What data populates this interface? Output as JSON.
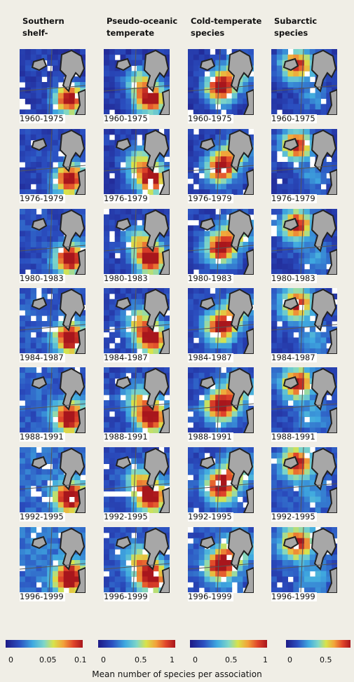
{
  "columns": [
    {
      "title1": "Southern",
      "title2": "shelf-"
    },
    {
      "title1": "Pseudo-oceanic",
      "title2": "temperate"
    },
    {
      "title1": "Cold-temperate",
      "title2": "species"
    },
    {
      "title1": "Subarctic",
      "title2": "species"
    }
  ],
  "periods": [
    "1960-1975",
    "1976-1979",
    "1980-1983",
    "1984-1987",
    "1988-1991",
    "1992-1995",
    "1996-1999"
  ],
  "colorbars": [
    {
      "ticks": [
        "0",
        "0.05",
        "0.1"
      ]
    },
    {
      "ticks": [
        "0",
        "0.5",
        "1"
      ]
    },
    {
      "ticks": [
        "0",
        "0.5",
        "1"
      ]
    },
    {
      "ticks": [
        "0",
        "0.5"
      ]
    }
  ],
  "caption": "Mean number of species per association",
  "colors": {
    "low": "#1f1d8c",
    "mid": "#4fc3e8",
    "high": "#d7301f",
    "land": "#a7a7a7",
    "background": "#f0eee6"
  }
}
